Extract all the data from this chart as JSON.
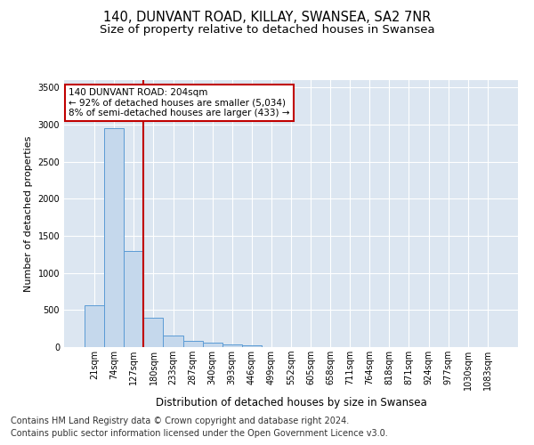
{
  "title1": "140, DUNVANT ROAD, KILLAY, SWANSEA, SA2 7NR",
  "title2": "Size of property relative to detached houses in Swansea",
  "xlabel": "Distribution of detached houses by size in Swansea",
  "ylabel": "Number of detached properties",
  "categories": [
    "21sqm",
    "74sqm",
    "127sqm",
    "180sqm",
    "233sqm",
    "287sqm",
    "340sqm",
    "393sqm",
    "446sqm",
    "499sqm",
    "552sqm",
    "605sqm",
    "658sqm",
    "711sqm",
    "764sqm",
    "818sqm",
    "871sqm",
    "924sqm",
    "977sqm",
    "1030sqm",
    "1083sqm"
  ],
  "values": [
    560,
    2950,
    1300,
    400,
    160,
    90,
    60,
    40,
    30,
    0,
    0,
    0,
    0,
    0,
    0,
    0,
    0,
    0,
    0,
    0,
    0
  ],
  "bar_color": "#c5d8ec",
  "bar_edge_color": "#5b9bd5",
  "vline_index": 3,
  "vline_color": "#c00000",
  "annotation_title": "140 DUNVANT ROAD: 204sqm",
  "annotation_line1": "← 92% of detached houses are smaller (5,034)",
  "annotation_line2": "8% of semi-detached houses are larger (433) →",
  "annotation_box_color": "#c00000",
  "footer1": "Contains HM Land Registry data © Crown copyright and database right 2024.",
  "footer2": "Contains public sector information licensed under the Open Government Licence v3.0.",
  "ylim": [
    0,
    3600
  ],
  "yticks": [
    0,
    500,
    1000,
    1500,
    2000,
    2500,
    3000,
    3500
  ],
  "plot_bg_color": "#dce6f1",
  "title1_fontsize": 10.5,
  "title2_fontsize": 9.5,
  "footer_fontsize": 7.0,
  "ylabel_fontsize": 8,
  "xlabel_fontsize": 8.5,
  "tick_fontsize": 7,
  "annot_fontsize": 7.5
}
